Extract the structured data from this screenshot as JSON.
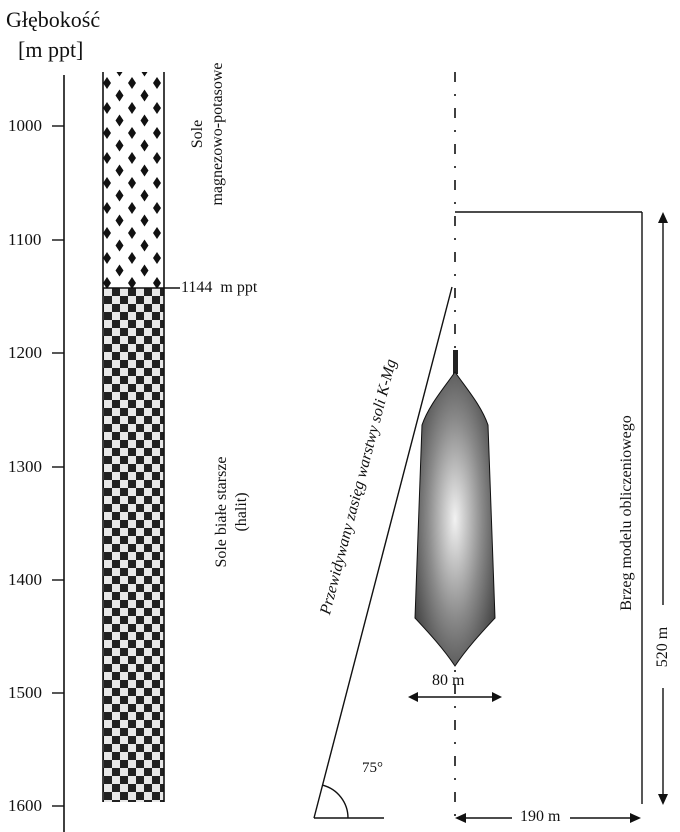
{
  "axis": {
    "title_line1": "Głębokość",
    "title_line2": "[m ppt]",
    "ticks": [
      "1000",
      "1100",
      "1200",
      "1300",
      "1400",
      "1500",
      "1600"
    ]
  },
  "column": {
    "upper_label_line1": "Sole",
    "upper_label_line2": "magnezowo-potasowe",
    "boundary_label": "1144  m ppt",
    "lower_label_line1": "Sole białe starsze",
    "lower_label_line2": "(halit)"
  },
  "model": {
    "inclined_label": "Przewidywany zasięg warstwy soli K-Mg",
    "angle_label": "75°",
    "cavern_width_label": "80 m",
    "boundary_label": "Brzeg modelu obliczeniowego",
    "height_label": "520 m",
    "width_label": "190 m"
  },
  "colors": {
    "ink": "#111111",
    "cavern_light": "#f2f2f2",
    "cavern_dark": "#1a1a1a"
  }
}
